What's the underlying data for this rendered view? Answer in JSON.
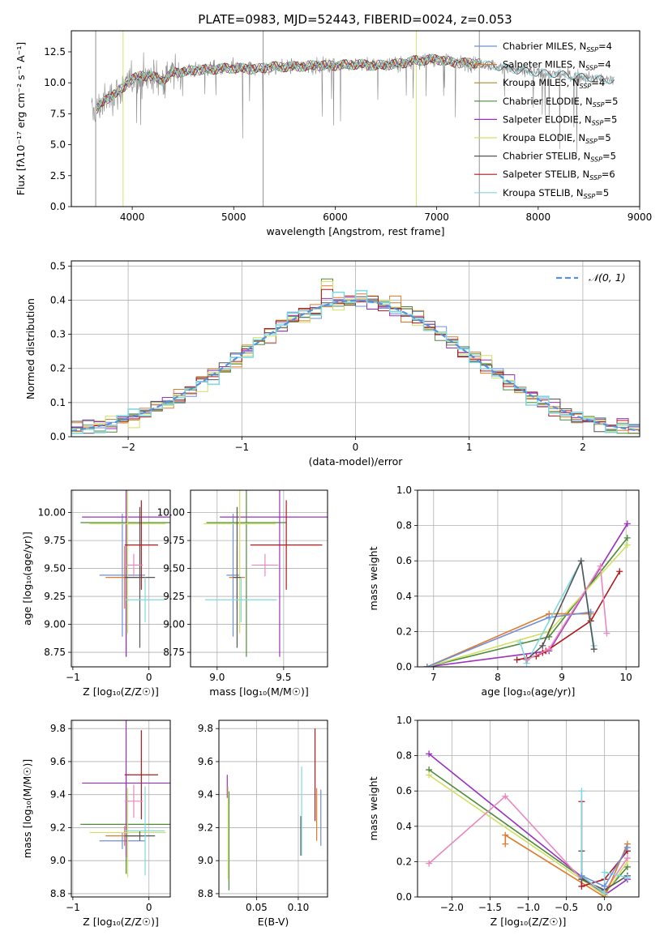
{
  "title": "PLATE=0983, MJD=52443, FIBERID=0024, z=0.053",
  "colors": {
    "chabrier_miles": "#6f8fd8",
    "salpeter_miles": "#e07b2e",
    "kroupa_miles": "#b8862a",
    "chabrier_elodie": "#4f8a3a",
    "salpeter_elodie": "#9b30c0",
    "kroupa_elodie": "#d0e060",
    "chabrier_stelib": "#555555",
    "salpeter_stelib": "#b0181c",
    "kroupa_stelib": "#80d8e0",
    "data": "#888888",
    "normal": "#5b8fd8",
    "extra_pink": "#e888c0"
  },
  "chart_data": [
    {
      "id": "spectrum",
      "type": "line",
      "xlabel": "wavelength [Angstrom, rest frame]",
      "ylabel": "Flux [fλ10⁻¹⁷ erg cm⁻² s⁻¹ A⁻¹]",
      "xlim": [
        3400,
        9000
      ],
      "ylim": [
        0,
        14.2
      ],
      "xticks": [
        4000,
        5000,
        6000,
        7000,
        8000,
        9000
      ],
      "yticks": [
        0.0,
        2.5,
        5.0,
        7.5,
        10.0,
        12.5
      ],
      "grid": false,
      "legend_position": "right",
      "legend": [
        {
          "key": "chabrier_miles",
          "label": "Chabrier MILES, N",
          "sub": "SSP",
          "suffix": "=4"
        },
        {
          "key": "salpeter_miles",
          "label": "Salpeter MILES, N",
          "sub": "SSP",
          "suffix": "=4"
        },
        {
          "key": "kroupa_miles",
          "label": "Kroupa MILES, N",
          "sub": "SSP",
          "suffix": "=4"
        },
        {
          "key": "chabrier_elodie",
          "label": "Chabrier ELODIE, N",
          "sub": "SSP",
          "suffix": "=5"
        },
        {
          "key": "salpeter_elodie",
          "label": "Salpeter ELODIE, N",
          "sub": "SSP",
          "suffix": "=5"
        },
        {
          "key": "kroupa_elodie",
          "label": "Kroupa ELODIE, N",
          "sub": "SSP",
          "suffix": "=5"
        },
        {
          "key": "chabrier_stelib",
          "label": "Chabrier STELIB, N",
          "sub": "SSP",
          "suffix": "=5"
        },
        {
          "key": "salpeter_stelib",
          "label": "Salpeter STELIB, N",
          "sub": "SSP",
          "suffix": "=6"
        },
        {
          "key": "kroupa_stelib",
          "label": "Kroupa STELIB, N",
          "sub": "SSP",
          "suffix": "=5"
        }
      ],
      "continuum": {
        "x": [
          3600,
          3700,
          3800,
          3900,
          4000,
          4100,
          4200,
          4300,
          4400,
          4600,
          4800,
          5000,
          5200,
          5400,
          5600,
          5800,
          6000,
          6200,
          6400,
          6600,
          6800,
          7000,
          7200,
          7400,
          7600,
          7800,
          8000,
          8200,
          8400,
          8600,
          8750
        ],
        "y": [
          7.5,
          8.3,
          9.0,
          9.5,
          10.3,
          10.6,
          10.5,
          10.2,
          10.8,
          11.0,
          11.1,
          11.2,
          11.1,
          11.3,
          11.3,
          11.4,
          11.4,
          11.5,
          11.4,
          11.5,
          11.8,
          11.9,
          11.6,
          11.6,
          11.3,
          11.0,
          10.8,
          10.7,
          10.5,
          10.3,
          10.2
        ]
      },
      "data_spikes": [
        {
          "x": 3640,
          "y": 0.0
        },
        {
          "x": 3910,
          "y": 0.0
        },
        {
          "x": 5290,
          "y": 0.0
        },
        {
          "x": 6800,
          "y": 0.0
        },
        {
          "x": 7420,
          "y": 0.0
        }
      ]
    },
    {
      "id": "residuals",
      "type": "step",
      "xlabel": "(data-model)/error",
      "ylabel": "Normed distribution",
      "xlim": [
        -2.5,
        2.5
      ],
      "ylim": [
        0,
        0.515
      ],
      "xticks": [
        -2,
        -1,
        0,
        1,
        2
      ],
      "yticks": [
        0.0,
        0.1,
        0.2,
        0.3,
        0.4,
        0.5
      ],
      "grid": true,
      "legend_position": "top-right",
      "normal_label": "𝒩(0, 1)",
      "bin_width": 0.1
    },
    {
      "id": "age_vs_Z",
      "type": "errorbar",
      "xlabel": "Z [log₁₀(Z/Z☉)]",
      "ylabel": "age  [log₁₀(age/yr)]",
      "xlim": [
        -1.02,
        0.28
      ],
      "ylim": [
        8.62,
        10.2
      ],
      "xticks": [
        -1,
        0
      ],
      "yticks": [
        8.75,
        9.0,
        9.25,
        9.5,
        9.75,
        10.0
      ],
      "grid": true,
      "points": [
        {
          "key": "chabrier_miles",
          "x": -0.35,
          "y": 9.44,
          "xerr": 0.3,
          "yerr": 0.55
        },
        {
          "key": "salpeter_miles",
          "x": -0.32,
          "y": 9.42,
          "xerr": 0.25,
          "yerr": 0.28
        },
        {
          "key": "chabrier_elodie",
          "x": -0.3,
          "y": 9.91,
          "xerr": 0.6,
          "yerr": 1.2
        },
        {
          "key": "salpeter_elodie",
          "x": -0.3,
          "y": 9.96,
          "xerr": 0.58,
          "yerr": 1.25
        },
        {
          "key": "kroupa_elodie",
          "x": -0.28,
          "y": 9.9,
          "xerr": 0.5,
          "yerr": 0.98
        },
        {
          "key": "chabrier_stelib",
          "x": -0.12,
          "y": 9.42,
          "xerr": 0.2,
          "yerr": 0.63
        },
        {
          "key": "salpeter_stelib",
          "x": -0.1,
          "y": 9.71,
          "xerr": 0.22,
          "yerr": 0.4
        },
        {
          "key": "kroupa_stelib",
          "x": -0.05,
          "y": 9.22,
          "xerr": 0.26,
          "yerr": 0.2
        },
        {
          "key": "extra_pink",
          "x": -0.2,
          "y": 9.53,
          "xerr": 0.12,
          "yerr": 0.1
        }
      ]
    },
    {
      "id": "age_vs_mass",
      "type": "errorbar",
      "xlabel": "mass [log₁₀(M/M☉)]",
      "ylabel": "",
      "xlim": [
        8.8,
        9.83
      ],
      "ylim": [
        8.62,
        10.2
      ],
      "xticks": [
        9.0,
        9.5
      ],
      "yticks": [
        8.75,
        9.0,
        9.25,
        9.5,
        9.75,
        10.0
      ],
      "grid": true,
      "points": [
        {
          "key": "chabrier_miles",
          "x": 9.12,
          "y": 9.44,
          "xerr": 0.05,
          "yerr": 0.55
        },
        {
          "key": "salpeter_miles",
          "x": 9.15,
          "y": 9.42,
          "xerr": 0.06,
          "yerr": 0.28
        },
        {
          "key": "chabrier_elodie",
          "x": 9.22,
          "y": 9.91,
          "xerr": 0.3,
          "yerr": 1.2
        },
        {
          "key": "salpeter_elodie",
          "x": 9.47,
          "y": 9.96,
          "xerr": 0.45,
          "yerr": 1.25
        },
        {
          "key": "kroupa_elodie",
          "x": 9.17,
          "y": 9.9,
          "xerr": 0.27,
          "yerr": 0.98
        },
        {
          "key": "chabrier_stelib",
          "x": 9.15,
          "y": 9.42,
          "xerr": 0.03,
          "yerr": 0.63
        },
        {
          "key": "salpeter_stelib",
          "x": 9.52,
          "y": 9.71,
          "xerr": 0.27,
          "yerr": 0.4
        },
        {
          "key": "kroupa_stelib",
          "x": 9.18,
          "y": 9.22,
          "xerr": 0.27,
          "yerr": 0.2
        },
        {
          "key": "extra_pink",
          "x": 9.36,
          "y": 9.53,
          "xerr": 0.1,
          "yerr": 0.1
        }
      ]
    },
    {
      "id": "weight_vs_age",
      "type": "line",
      "xlabel": "age  [log₁₀(age/yr)]",
      "ylabel": "mass weight",
      "xlim": [
        6.75,
        10.2
      ],
      "ylim": [
        0,
        1.0
      ],
      "xticks": [
        7,
        8,
        9,
        10
      ],
      "yticks": [
        0.0,
        0.2,
        0.4,
        0.6,
        0.8,
        1.0
      ],
      "grid": true,
      "series": [
        {
          "key": "salpeter_elodie",
          "x": [
            6.9,
            8.8,
            10.02
          ],
          "y": [
            0.0,
            0.09,
            0.81
          ]
        },
        {
          "key": "chabrier_elodie",
          "x": [
            6.9,
            8.8,
            10.02
          ],
          "y": [
            0.0,
            0.17,
            0.73
          ]
        },
        {
          "key": "kroupa_elodie",
          "x": [
            6.9,
            8.8,
            10.02
          ],
          "y": [
            0.0,
            0.2,
            0.69
          ]
        },
        {
          "key": "salpeter_miles",
          "x": [
            6.9,
            8.8,
            9.45
          ],
          "y": [
            0.0,
            0.3,
            0.3
          ]
        },
        {
          "key": "chabrier_miles",
          "x": [
            6.9,
            8.8,
            9.45
          ],
          "y": [
            0.0,
            0.28,
            0.31
          ]
        },
        {
          "key": "salpeter_stelib",
          "x": [
            8.3,
            8.45,
            8.6,
            8.7,
            8.75,
            8.8,
            9.45,
            9.9
          ],
          "y": [
            0.04,
            0.05,
            0.06,
            0.08,
            0.09,
            0.1,
            0.26,
            0.54
          ]
        },
        {
          "key": "kroupa_stelib",
          "x": [
            8.35,
            8.45,
            9.3,
            9.5
          ],
          "y": [
            0.14,
            0.02,
            0.6,
            0.12
          ]
        },
        {
          "key": "chabrier_stelib",
          "x": [
            8.45,
            8.7,
            9.3,
            9.5
          ],
          "y": [
            0.04,
            0.12,
            0.6,
            0.1
          ]
        },
        {
          "key": "extra_pink",
          "x": [
            8.45,
            8.8,
            9.6,
            9.7
          ],
          "y": [
            0.04,
            0.1,
            0.57,
            0.19
          ]
        }
      ]
    },
    {
      "id": "mass_vs_Z",
      "type": "errorbar",
      "xlabel": "Z [log₁₀(Z/Z☉)]",
      "ylabel": "mass [log₁₀(M/M☉)]",
      "xlim": [
        -1.02,
        0.28
      ],
      "ylim": [
        8.78,
        9.85
      ],
      "xticks": [
        -1,
        0
      ],
      "yticks": [
        8.8,
        9.0,
        9.2,
        9.4,
        9.6,
        9.8
      ],
      "grid": true,
      "points": [
        {
          "key": "chabrier_miles",
          "x": -0.35,
          "y": 9.12,
          "xerr": 0.3,
          "yerr": 0.05
        },
        {
          "key": "salpeter_miles",
          "x": -0.32,
          "y": 9.15,
          "xerr": 0.25,
          "yerr": 0.06
        },
        {
          "key": "chabrier_elodie",
          "x": -0.3,
          "y": 9.22,
          "xerr": 0.6,
          "yerr": 0.3
        },
        {
          "key": "salpeter_elodie",
          "x": -0.3,
          "y": 9.47,
          "xerr": 0.58,
          "yerr": 0.45
        },
        {
          "key": "kroupa_elodie",
          "x": -0.28,
          "y": 9.17,
          "xerr": 0.5,
          "yerr": 0.27
        },
        {
          "key": "chabrier_stelib",
          "x": -0.12,
          "y": 9.15,
          "xerr": 0.2,
          "yerr": 0.03
        },
        {
          "key": "salpeter_stelib",
          "x": -0.1,
          "y": 9.52,
          "xerr": 0.22,
          "yerr": 0.27
        },
        {
          "key": "kroupa_stelib",
          "x": -0.05,
          "y": 9.18,
          "xerr": 0.26,
          "yerr": 0.27
        },
        {
          "key": "extra_pink",
          "x": -0.2,
          "y": 9.36,
          "xerr": 0.12,
          "yerr": 0.1
        }
      ]
    },
    {
      "id": "mass_vs_ebv",
      "type": "errorbar",
      "xlabel": "E(B-V)",
      "ylabel": "",
      "xlim": [
        0.005,
        0.135
      ],
      "ylim": [
        8.78,
        9.85
      ],
      "xticks": [
        0.05,
        0.1
      ],
      "yticks": [
        8.8,
        9.0,
        9.2,
        9.4,
        9.6,
        9.8
      ],
      "grid": true,
      "points": [
        {
          "key": "chabrier_miles",
          "x": 0.127,
          "y": 9.26,
          "xerr": 0,
          "yerr": 0.17
        },
        {
          "key": "salpeter_miles",
          "x": 0.122,
          "y": 9.28,
          "xerr": 0,
          "yerr": 0.16
        },
        {
          "key": "chabrier_elodie",
          "x": 0.017,
          "y": 9.12,
          "xerr": 0,
          "yerr": 0.3
        },
        {
          "key": "salpeter_elodie",
          "x": 0.015,
          "y": 9.45,
          "xerr": 0,
          "yerr": 0.07
        },
        {
          "key": "kroupa_elodie",
          "x": 0.016,
          "y": 9.17,
          "xerr": 0,
          "yerr": 0.28
        },
        {
          "key": "chabrier_stelib",
          "x": 0.103,
          "y": 9.15,
          "xerr": 0,
          "yerr": 0.12
        },
        {
          "key": "salpeter_stelib",
          "x": 0.12,
          "y": 9.52,
          "xerr": 0,
          "yerr": 0.28
        },
        {
          "key": "kroupa_stelib",
          "x": 0.104,
          "y": 9.3,
          "xerr": 0,
          "yerr": 0.27
        }
      ]
    },
    {
      "id": "weight_vs_Z",
      "type": "line",
      "xlabel": "Z [log₁₀(Z/Z☉)]",
      "ylabel": "mass weight",
      "xlim": [
        -2.45,
        0.45
      ],
      "ylim": [
        0,
        1.0
      ],
      "xticks": [
        -2.0,
        -1.5,
        -1.0,
        -0.5,
        0.0
      ],
      "yticks": [
        0.0,
        0.2,
        0.4,
        0.6,
        0.8,
        1.0
      ],
      "grid": true,
      "series": [
        {
          "key": "salpeter_elodie",
          "x": [
            -2.3,
            0.0,
            0.3
          ],
          "y": [
            0.81,
            0.01,
            0.1
          ]
        },
        {
          "key": "chabrier_elodie",
          "x": [
            -2.3,
            0.0,
            0.3
          ],
          "y": [
            0.72,
            0.02,
            0.17
          ]
        },
        {
          "key": "kroupa_elodie",
          "x": [
            -2.3,
            0.0,
            0.3
          ],
          "y": [
            0.69,
            0.01,
            0.2
          ]
        },
        {
          "key": "extra_pink",
          "x": [
            -2.3,
            -1.3,
            -0.3,
            0.0,
            0.3
          ],
          "y": [
            0.19,
            0.57,
            0.1,
            0.03,
            0.22
          ]
        },
        {
          "key": "salpeter_miles",
          "x": [
            -1.3,
            -1.3,
            0.0,
            0.3
          ],
          "y": [
            0.3,
            0.35,
            0.0,
            0.3
          ]
        },
        {
          "key": "salpeter_stelib",
          "x": [
            -0.3,
            -0.3,
            0.0,
            0.3
          ],
          "y": [
            0.54,
            0.06,
            0.1,
            0.26
          ]
        },
        {
          "key": "chabrier_stelib",
          "x": [
            -0.3,
            -0.3,
            0.0,
            0.3
          ],
          "y": [
            0.26,
            0.1,
            0.04,
            0.12
          ]
        },
        {
          "key": "kroupa_stelib",
          "x": [
            -0.3,
            -0.3,
            0.0,
            0.0,
            0.3
          ],
          "y": [
            0.6,
            0.12,
            0.02,
            0.14,
            0.11
          ]
        },
        {
          "key": "chabrier_miles",
          "x": [
            -0.3,
            0.0,
            0.3
          ],
          "y": [
            0.12,
            0.06,
            0.28
          ]
        }
      ]
    }
  ]
}
